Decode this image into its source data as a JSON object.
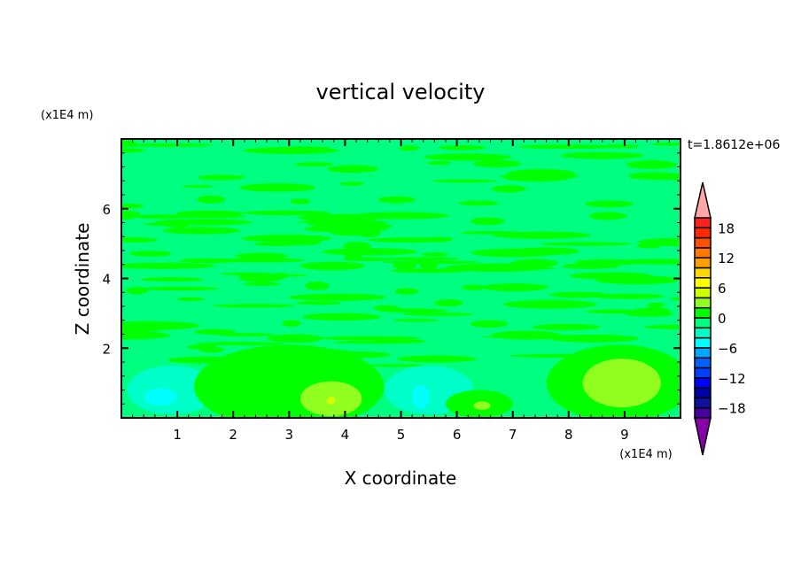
{
  "chart_data": {
    "type": "heatmap",
    "subtype": "filled-contour",
    "title": "vertical velocity",
    "xlabel": "X coordinate",
    "ylabel": "Z coordinate",
    "x_unit": "(x1E4 m)",
    "y_unit": "(x1E4 m)",
    "time_label": "t=1.8612e+06",
    "xlim": [
      0,
      10
    ],
    "ylim": [
      0,
      8
    ],
    "x_ticks": [
      1,
      2,
      3,
      4,
      5,
      6,
      7,
      8,
      9
    ],
    "y_ticks": [
      2,
      4,
      6
    ],
    "colorbar": {
      "levels": [
        -20,
        -18,
        -16,
        -14,
        -12,
        -10,
        -8,
        -6,
        -4,
        -2,
        0,
        2,
        4,
        6,
        8,
        10,
        12,
        14,
        16,
        18,
        20
      ],
      "labels": [
        "18",
        "12",
        "6",
        "0",
        "-6",
        "-12",
        "-18"
      ],
      "label_values": [
        18,
        12,
        6,
        0,
        -6,
        -12,
        -18
      ],
      "colors": [
        "#4400a0",
        "#1010a0",
        "#0000a8",
        "#0000ff",
        "#0040ff",
        "#0060ff",
        "#00a8ff",
        "#00ffff",
        "#00ffc8",
        "#00ff80",
        "#00ff00",
        "#90ff20",
        "#d0ff00",
        "#ffff00",
        "#ffd800",
        "#ffa000",
        "#ff7800",
        "#ff5000",
        "#ff2800",
        "#ff2020"
      ],
      "over_color": "#ffa8a8",
      "under_color": "#8800a8"
    },
    "background_level": -1,
    "features": [
      {
        "x": 0.9,
        "z": 0.8,
        "rx": 0.8,
        "rz": 0.7,
        "level": -3
      },
      {
        "x": 0.7,
        "z": 0.6,
        "rx": 0.3,
        "rz": 0.25,
        "level": -5
      },
      {
        "x": 3.0,
        "z": 0.9,
        "rx": 1.7,
        "rz": 1.2,
        "level": 1
      },
      {
        "x": 3.75,
        "z": 0.55,
        "rx": 0.55,
        "rz": 0.5,
        "level": 3
      },
      {
        "x": 3.75,
        "z": 0.5,
        "rx": 0.08,
        "rz": 0.12,
        "level": 5
      },
      {
        "x": 5.5,
        "z": 0.8,
        "rx": 0.8,
        "rz": 0.7,
        "level": -3
      },
      {
        "x": 5.35,
        "z": 0.6,
        "rx": 0.15,
        "rz": 0.35,
        "level": -5
      },
      {
        "x": 6.4,
        "z": 0.4,
        "rx": 0.6,
        "rz": 0.4,
        "level": 1
      },
      {
        "x": 6.45,
        "z": 0.35,
        "rx": 0.15,
        "rz": 0.12,
        "level": 3
      },
      {
        "x": 8.9,
        "z": 1.0,
        "rx": 1.3,
        "rz": 1.1,
        "level": 1
      },
      {
        "x": 8.95,
        "z": 1.0,
        "rx": 0.7,
        "rz": 0.7,
        "level": 3
      }
    ]
  }
}
